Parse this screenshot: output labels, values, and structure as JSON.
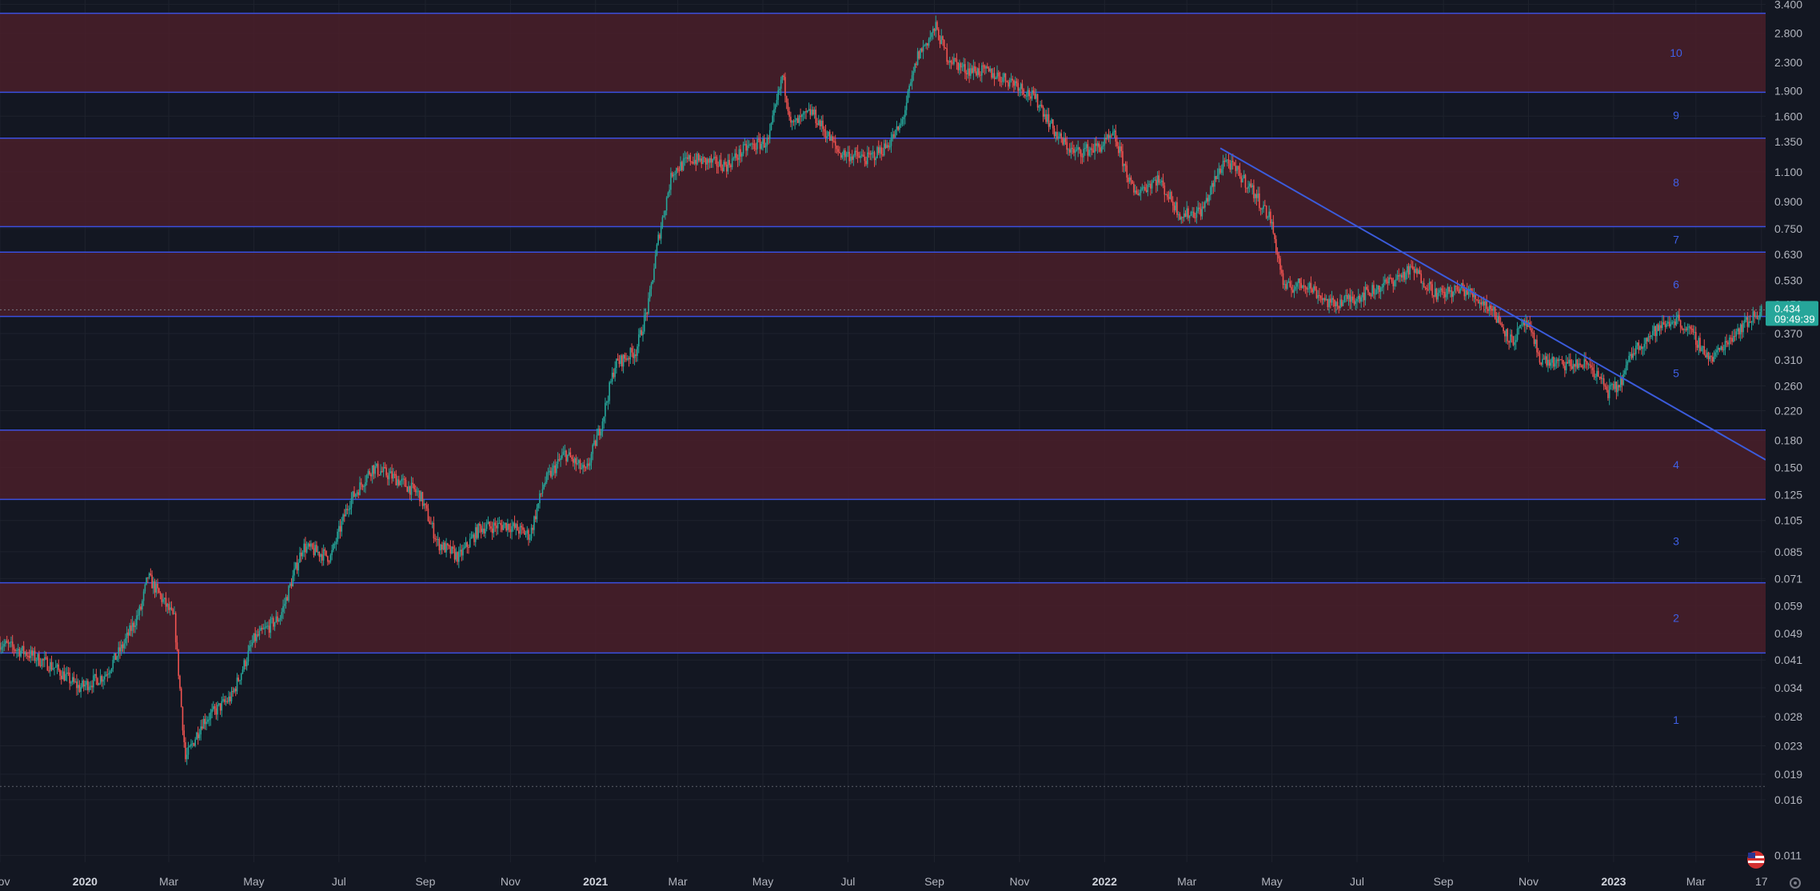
{
  "chart_data": {
    "type": "candlestick",
    "y_scale": "log",
    "ylim": [
      0.0105,
      3.5
    ],
    "x_range": [
      "2019-11-01",
      "2023-04-20"
    ],
    "grid": true,
    "colors": {
      "background": "#131722",
      "grid": "#1e222d",
      "up": "#26a69a",
      "down": "#ef5350",
      "zone_fill": "#4c1f2a",
      "level_line": "#3a4fe0",
      "trendline": "#3b5bdb",
      "axis_text": "#b2b5be",
      "zone_label": "#3f5fe6",
      "price_label_bg": "#26a69a"
    },
    "y_ticks": [
      "3.400",
      "2.800",
      "2.300",
      "1.900",
      "1.600",
      "1.350",
      "1.100",
      "0.900",
      "0.750",
      "0.630",
      "0.530",
      "0.450",
      "0.370",
      "0.310",
      "0.260",
      "0.220",
      "0.180",
      "0.150",
      "0.125",
      "0.105",
      "0.085",
      "0.071",
      "0.059",
      "0.049",
      "0.041",
      "0.034",
      "0.028",
      "0.023",
      "0.019",
      "0.016",
      "0.011"
    ],
    "x_ticks": [
      {
        "label": "Nov",
        "date": "2019-11-01",
        "major": false
      },
      {
        "label": "2020",
        "date": "2020-01-01",
        "major": true
      },
      {
        "label": "Mar",
        "date": "2020-03-01",
        "major": false
      },
      {
        "label": "May",
        "date": "2020-05-01",
        "major": false
      },
      {
        "label": "Jul",
        "date": "2020-07-01",
        "major": false
      },
      {
        "label": "Sep",
        "date": "2020-09-01",
        "major": false
      },
      {
        "label": "Nov",
        "date": "2020-11-01",
        "major": false
      },
      {
        "label": "2021",
        "date": "2021-01-01",
        "major": true
      },
      {
        "label": "Mar",
        "date": "2021-03-01",
        "major": false
      },
      {
        "label": "May",
        "date": "2021-05-01",
        "major": false
      },
      {
        "label": "Jul",
        "date": "2021-07-01",
        "major": false
      },
      {
        "label": "Sep",
        "date": "2021-09-01",
        "major": false
      },
      {
        "label": "Nov",
        "date": "2021-11-01",
        "major": false
      },
      {
        "label": "2022",
        "date": "2022-01-01",
        "major": true
      },
      {
        "label": "Mar",
        "date": "2022-03-01",
        "major": false
      },
      {
        "label": "May",
        "date": "2022-05-01",
        "major": false
      },
      {
        "label": "Jul",
        "date": "2022-07-01",
        "major": false
      },
      {
        "label": "Sep",
        "date": "2022-09-01",
        "major": false
      },
      {
        "label": "Nov",
        "date": "2022-11-01",
        "major": false
      },
      {
        "label": "2023",
        "date": "2023-01-01",
        "major": true
      },
      {
        "label": "Mar",
        "date": "2023-03-01",
        "major": false
      },
      {
        "label": "17",
        "date": "2023-04-17",
        "major": false
      }
    ],
    "zones": [
      {
        "label": "10",
        "low": 1.88,
        "high": 3.2,
        "filled": true
      },
      {
        "label": "9",
        "low": 1.38,
        "high": 1.88,
        "filled": false
      },
      {
        "label": "8",
        "low": 0.76,
        "high": 1.38,
        "filled": true
      },
      {
        "label": "7",
        "low": 0.64,
        "high": 0.76,
        "filled": false
      },
      {
        "label": "6",
        "low": 0.415,
        "high": 0.64,
        "filled": true
      },
      {
        "label": "5",
        "low": 0.193,
        "high": 0.415,
        "filled": false
      },
      {
        "label": "4",
        "low": 0.121,
        "high": 0.193,
        "filled": true
      },
      {
        "label": "3",
        "low": 0.069,
        "high": 0.121,
        "filled": false
      },
      {
        "label": "2",
        "low": 0.043,
        "high": 0.069,
        "filled": true
      },
      {
        "label": "1",
        "low": 0.0175,
        "high": 0.043,
        "filled": false
      }
    ],
    "trendline": {
      "from": {
        "date": "2022-03-25",
        "value": 1.29
      },
      "to": {
        "date": "2023-04-20",
        "value": 0.158
      }
    },
    "last_price": {
      "value": 0.434,
      "label": "0.434",
      "countdown": "09:49:39"
    },
    "low_marker": 0.0175,
    "price_path": [
      {
        "date": "2019-11-01",
        "close": 0.046
      },
      {
        "date": "2019-11-20",
        "close": 0.043
      },
      {
        "date": "2019-12-10",
        "close": 0.039
      },
      {
        "date": "2019-12-28",
        "close": 0.034
      },
      {
        "date": "2020-01-15",
        "close": 0.037
      },
      {
        "date": "2020-01-28",
        "close": 0.045
      },
      {
        "date": "2020-02-10",
        "close": 0.058
      },
      {
        "date": "2020-02-15",
        "close": 0.072
      },
      {
        "date": "2020-02-25",
        "close": 0.062
      },
      {
        "date": "2020-03-05",
        "close": 0.054
      },
      {
        "date": "2020-03-13",
        "close": 0.021
      },
      {
        "date": "2020-03-25",
        "close": 0.027
      },
      {
        "date": "2020-04-15",
        "close": 0.032
      },
      {
        "date": "2020-05-01",
        "close": 0.047
      },
      {
        "date": "2020-05-20",
        "close": 0.055
      },
      {
        "date": "2020-06-05",
        "close": 0.088
      },
      {
        "date": "2020-06-25",
        "close": 0.082
      },
      {
        "date": "2020-07-08",
        "close": 0.118
      },
      {
        "date": "2020-07-25",
        "close": 0.15
      },
      {
        "date": "2020-08-10",
        "close": 0.14
      },
      {
        "date": "2020-08-28",
        "close": 0.125
      },
      {
        "date": "2020-09-10",
        "close": 0.09
      },
      {
        "date": "2020-09-25",
        "close": 0.082
      },
      {
        "date": "2020-10-10",
        "close": 0.1
      },
      {
        "date": "2020-10-30",
        "close": 0.102
      },
      {
        "date": "2020-11-15",
        "close": 0.095
      },
      {
        "date": "2020-11-25",
        "close": 0.135
      },
      {
        "date": "2020-12-10",
        "close": 0.165
      },
      {
        "date": "2020-12-25",
        "close": 0.145
      },
      {
        "date": "2021-01-05",
        "close": 0.2
      },
      {
        "date": "2021-01-15",
        "close": 0.3
      },
      {
        "date": "2021-01-30",
        "close": 0.33
      },
      {
        "date": "2021-02-08",
        "close": 0.45
      },
      {
        "date": "2021-02-15",
        "close": 0.7
      },
      {
        "date": "2021-02-25",
        "close": 1.1
      },
      {
        "date": "2021-03-10",
        "close": 1.2
      },
      {
        "date": "2021-04-05",
        "close": 1.15
      },
      {
        "date": "2021-04-20",
        "close": 1.3
      },
      {
        "date": "2021-05-05",
        "close": 1.35
      },
      {
        "date": "2021-05-15",
        "close": 2.1
      },
      {
        "date": "2021-05-22",
        "close": 1.5
      },
      {
        "date": "2021-06-05",
        "close": 1.65
      },
      {
        "date": "2021-06-25",
        "close": 1.25
      },
      {
        "date": "2021-07-15",
        "close": 1.2
      },
      {
        "date": "2021-07-28",
        "close": 1.3
      },
      {
        "date": "2021-08-08",
        "close": 1.5
      },
      {
        "date": "2021-08-20",
        "close": 2.4
      },
      {
        "date": "2021-09-02",
        "close": 2.9
      },
      {
        "date": "2021-09-10",
        "close": 2.4
      },
      {
        "date": "2021-09-22",
        "close": 2.2
      },
      {
        "date": "2021-10-10",
        "close": 2.15
      },
      {
        "date": "2021-10-30",
        "close": 2.0
      },
      {
        "date": "2021-11-15",
        "close": 1.75
      },
      {
        "date": "2021-11-28",
        "close": 1.4
      },
      {
        "date": "2021-12-10",
        "close": 1.25
      },
      {
        "date": "2021-12-28",
        "close": 1.3
      },
      {
        "date": "2022-01-08",
        "close": 1.4
      },
      {
        "date": "2022-01-22",
        "close": 0.95
      },
      {
        "date": "2022-02-08",
        "close": 1.05
      },
      {
        "date": "2022-02-25",
        "close": 0.82
      },
      {
        "date": "2022-03-12",
        "close": 0.85
      },
      {
        "date": "2022-03-28",
        "close": 1.2
      },
      {
        "date": "2022-04-15",
        "close": 1.0
      },
      {
        "date": "2022-04-30",
        "close": 0.8
      },
      {
        "date": "2022-05-10",
        "close": 0.5
      },
      {
        "date": "2022-05-25",
        "close": 0.52
      },
      {
        "date": "2022-06-12",
        "close": 0.45
      },
      {
        "date": "2022-06-28",
        "close": 0.47
      },
      {
        "date": "2022-07-15",
        "close": 0.5
      },
      {
        "date": "2022-08-10",
        "close": 0.57
      },
      {
        "date": "2022-08-28",
        "close": 0.48
      },
      {
        "date": "2022-09-15",
        "close": 0.5
      },
      {
        "date": "2022-10-05",
        "close": 0.44
      },
      {
        "date": "2022-10-20",
        "close": 0.35
      },
      {
        "date": "2022-10-30",
        "close": 0.4
      },
      {
        "date": "2022-11-10",
        "close": 0.31
      },
      {
        "date": "2022-11-25",
        "close": 0.3
      },
      {
        "date": "2022-12-15",
        "close": 0.3
      },
      {
        "date": "2022-12-28",
        "close": 0.25
      },
      {
        "date": "2023-01-05",
        "close": 0.26
      },
      {
        "date": "2023-01-15",
        "close": 0.33
      },
      {
        "date": "2023-02-01",
        "close": 0.38
      },
      {
        "date": "2023-02-15",
        "close": 0.41
      },
      {
        "date": "2023-02-28",
        "close": 0.36
      },
      {
        "date": "2023-03-12",
        "close": 0.31
      },
      {
        "date": "2023-03-28",
        "close": 0.37
      },
      {
        "date": "2023-04-17",
        "close": 0.434
      }
    ]
  }
}
